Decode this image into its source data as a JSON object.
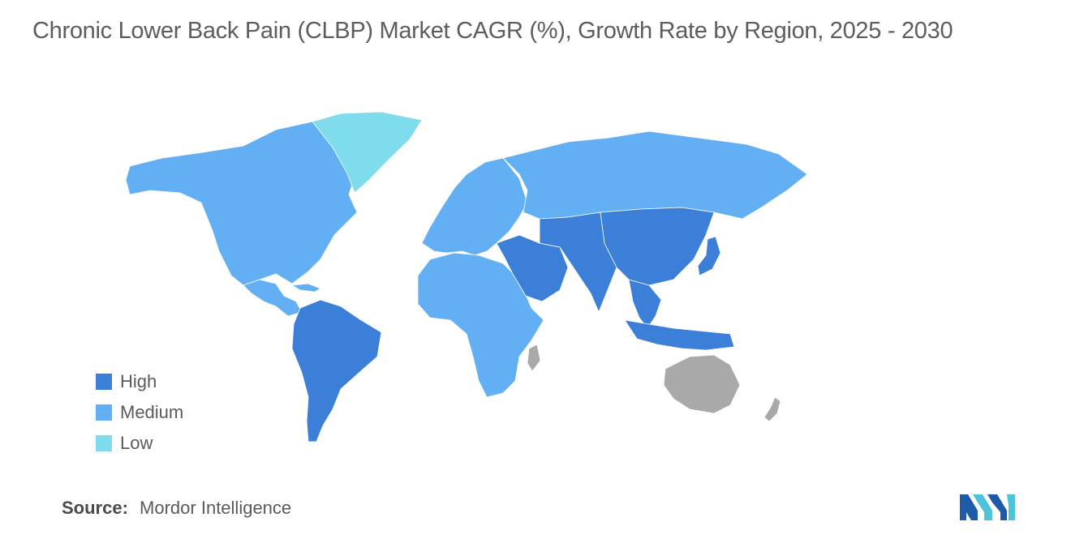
{
  "title": "Chronic Lower Back Pain (CLBP) Market CAGR (%), Growth Rate by Region, 2025 - 2030",
  "colors": {
    "high": "#3b7fd9",
    "medium": "#62b0f3",
    "low": "#7fdcec",
    "no_data": "#a9a9a9",
    "logo_dark": "#1f5aa8",
    "logo_light": "#4fc3d9"
  },
  "legend": [
    {
      "label": "High",
      "color_key": "high"
    },
    {
      "label": "Medium",
      "color_key": "medium"
    },
    {
      "label": "Low",
      "color_key": "low"
    }
  ],
  "regions": {
    "north_america": "medium",
    "greenland": "low",
    "south_america": "high",
    "europe": "medium",
    "russia": "medium",
    "africa": "medium",
    "middle_east": "high",
    "south_asia": "high",
    "china": "high",
    "japan": "high",
    "southeast_asia": "high",
    "australia": "no_data",
    "new_zealand": "no_data",
    "madagascar": "no_data"
  },
  "source": {
    "label": "Source:",
    "value": "Mordor Intelligence"
  }
}
